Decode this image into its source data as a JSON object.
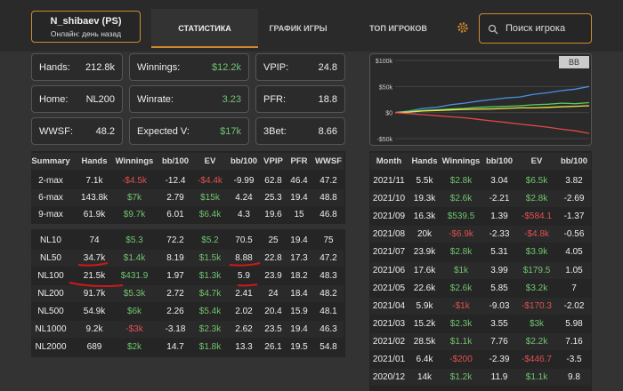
{
  "profile": {
    "name": "N_shibaev (PS)",
    "status": "Онлайн: день назад"
  },
  "tabs": [
    "СТАТИСТИКА",
    "ГРАФИК ИГРЫ",
    "ТОП ИГРОКОВ"
  ],
  "search_placeholder": "Поиск игрока",
  "stats": [
    {
      "label": "Hands:",
      "value": "212.8k"
    },
    {
      "label": "Winnings:",
      "value": "$12.2k",
      "value_color": "#6fc46f"
    },
    {
      "label": "VPIP:",
      "value": "24.8"
    },
    {
      "label": "Home:",
      "value": "NL200"
    },
    {
      "label": "Winrate:",
      "value": "3.23",
      "value_color": "#6fc46f"
    },
    {
      "label": "PFR:",
      "value": "18.8"
    },
    {
      "label": "WWSF:",
      "value": "48.2"
    },
    {
      "label": "Expected V:",
      "value": "$17k",
      "value_color": "#6fc46f"
    },
    {
      "label": "3Bet:",
      "value": "8.66"
    }
  ],
  "graph": {
    "type": "line",
    "unit_button": "BB",
    "ylim": [
      -50000,
      100000
    ],
    "yticks": [
      {
        "value": 100000,
        "label": "$100k"
      },
      {
        "value": 50000,
        "label": "$50k"
      },
      {
        "value": 0,
        "label": "$0"
      },
      {
        "value": -50000,
        "label": "-$50k"
      }
    ],
    "series": [
      {
        "color": "#4a8fe0",
        "values": [
          0,
          3000,
          8000,
          10000,
          15000,
          18000,
          22000,
          25000,
          28000,
          30000,
          35000,
          38000,
          42000,
          45000,
          50000
        ]
      },
      {
        "color": "#5cc95c",
        "values": [
          0,
          2000,
          4000,
          5000,
          7000,
          8000,
          10000,
          11000,
          12000,
          13000,
          15000,
          16000,
          18000,
          17000,
          19000
        ]
      },
      {
        "color": "#e8e84a",
        "values": [
          0,
          1000,
          3000,
          4000,
          5000,
          6000,
          6500,
          7000,
          8000,
          9000,
          9000,
          10000,
          11000,
          12000,
          13000
        ]
      },
      {
        "color": "#e04848",
        "values": [
          0,
          -2000,
          -4000,
          -6000,
          -8000,
          -10000,
          -13000,
          -16000,
          -19000,
          -22000,
          -25000,
          -28000,
          -32000,
          -35000,
          -40000
        ]
      }
    ]
  },
  "summary_table": {
    "columns": [
      "Summary",
      "Hands",
      "Winnings",
      "bb/100",
      "EV",
      "bb/100",
      "VPIP",
      "PFR",
      "WWSF"
    ],
    "rows": [
      [
        "2-max",
        "7.1k",
        "-$4.5k",
        "-12.4",
        "-$4.4k",
        "-9.99",
        "62.8",
        "46.4",
        "47.2"
      ],
      [
        "6-max",
        "143.8k",
        "$7k",
        "2.79",
        "$15k",
        "4.24",
        "25.3",
        "19.4",
        "48.8"
      ],
      [
        "9-max",
        "61.9k",
        "$9.7k",
        "6.01",
        "$6.4k",
        "4.3",
        "19.6",
        "15",
        "46.8"
      ]
    ]
  },
  "limits_table": {
    "rows": [
      [
        "NL10",
        "74",
        "$5.3",
        "72.2",
        "$5.2",
        "70.5",
        "25",
        "19.4",
        "75"
      ],
      [
        "NL50",
        "34.7k",
        "$1.4k",
        "8.19",
        "$1.5k",
        "8.88",
        "22.8",
        "17.3",
        "47.2"
      ],
      [
        "NL100",
        "21.5k",
        "$431.9",
        "1.97",
        "$1.3k",
        "5.9",
        "23.9",
        "18.2",
        "48.3"
      ],
      [
        "NL200",
        "91.7k",
        "$5.3k",
        "2.72",
        "$4.7k",
        "2.41",
        "24",
        "18.4",
        "48.2"
      ],
      [
        "NL500",
        "54.9k",
        "$6k",
        "2.26",
        "$5.4k",
        "2.02",
        "20.4",
        "15.9",
        "48.1"
      ],
      [
        "NL1000",
        "9.2k",
        "-$3k",
        "-3.18",
        "$2.3k",
        "2.62",
        "23.5",
        "19.4",
        "46.3"
      ],
      [
        "NL2000",
        "689",
        "$2k",
        "14.7",
        "$1.8k",
        "13.3",
        "26.1",
        "19.5",
        "54.8"
      ]
    ]
  },
  "months_table": {
    "columns": [
      "Month",
      "Hands",
      "Winnings",
      "bb/100",
      "EV",
      "bb/100"
    ],
    "rows": [
      [
        "2021/11",
        "5.5k",
        "$2.8k",
        "3.04",
        "$6.5k",
        "3.82"
      ],
      [
        "2021/10",
        "19.3k",
        "$2.6k",
        "-2.21",
        "$2.8k",
        "-2.69"
      ],
      [
        "2021/09",
        "16.3k",
        "$539.5",
        "1.39",
        "-$584.1",
        "-1.37"
      ],
      [
        "2021/08",
        "20k",
        "-$6.9k",
        "-2.33",
        "-$4.8k",
        "-0.56"
      ],
      [
        "2021/07",
        "23.9k",
        "$2.8k",
        "5.31",
        "$3.9k",
        "4.05"
      ],
      [
        "2021/06",
        "17.6k",
        "$1k",
        "3.99",
        "$179.5",
        "1.05"
      ],
      [
        "2021/05",
        "22.6k",
        "$2.6k",
        "5.85",
        "$3.2k",
        "7"
      ],
      [
        "2021/04",
        "5.9k",
        "-$1k",
        "-9.03",
        "-$170.3",
        "-2.02"
      ],
      [
        "2021/03",
        "15.2k",
        "$2.3k",
        "3.55",
        "$3k",
        "5.98"
      ],
      [
        "2021/02",
        "28.5k",
        "$1.1k",
        "7.76",
        "$2.2k",
        "7.16"
      ],
      [
        "2021/01",
        "6.4k",
        "-$200",
        "-2.39",
        "-$446.7",
        "-3.5"
      ],
      [
        "2020/12",
        "14k",
        "$1.2k",
        "11.9",
        "$1.1k",
        "9.8"
      ]
    ]
  }
}
